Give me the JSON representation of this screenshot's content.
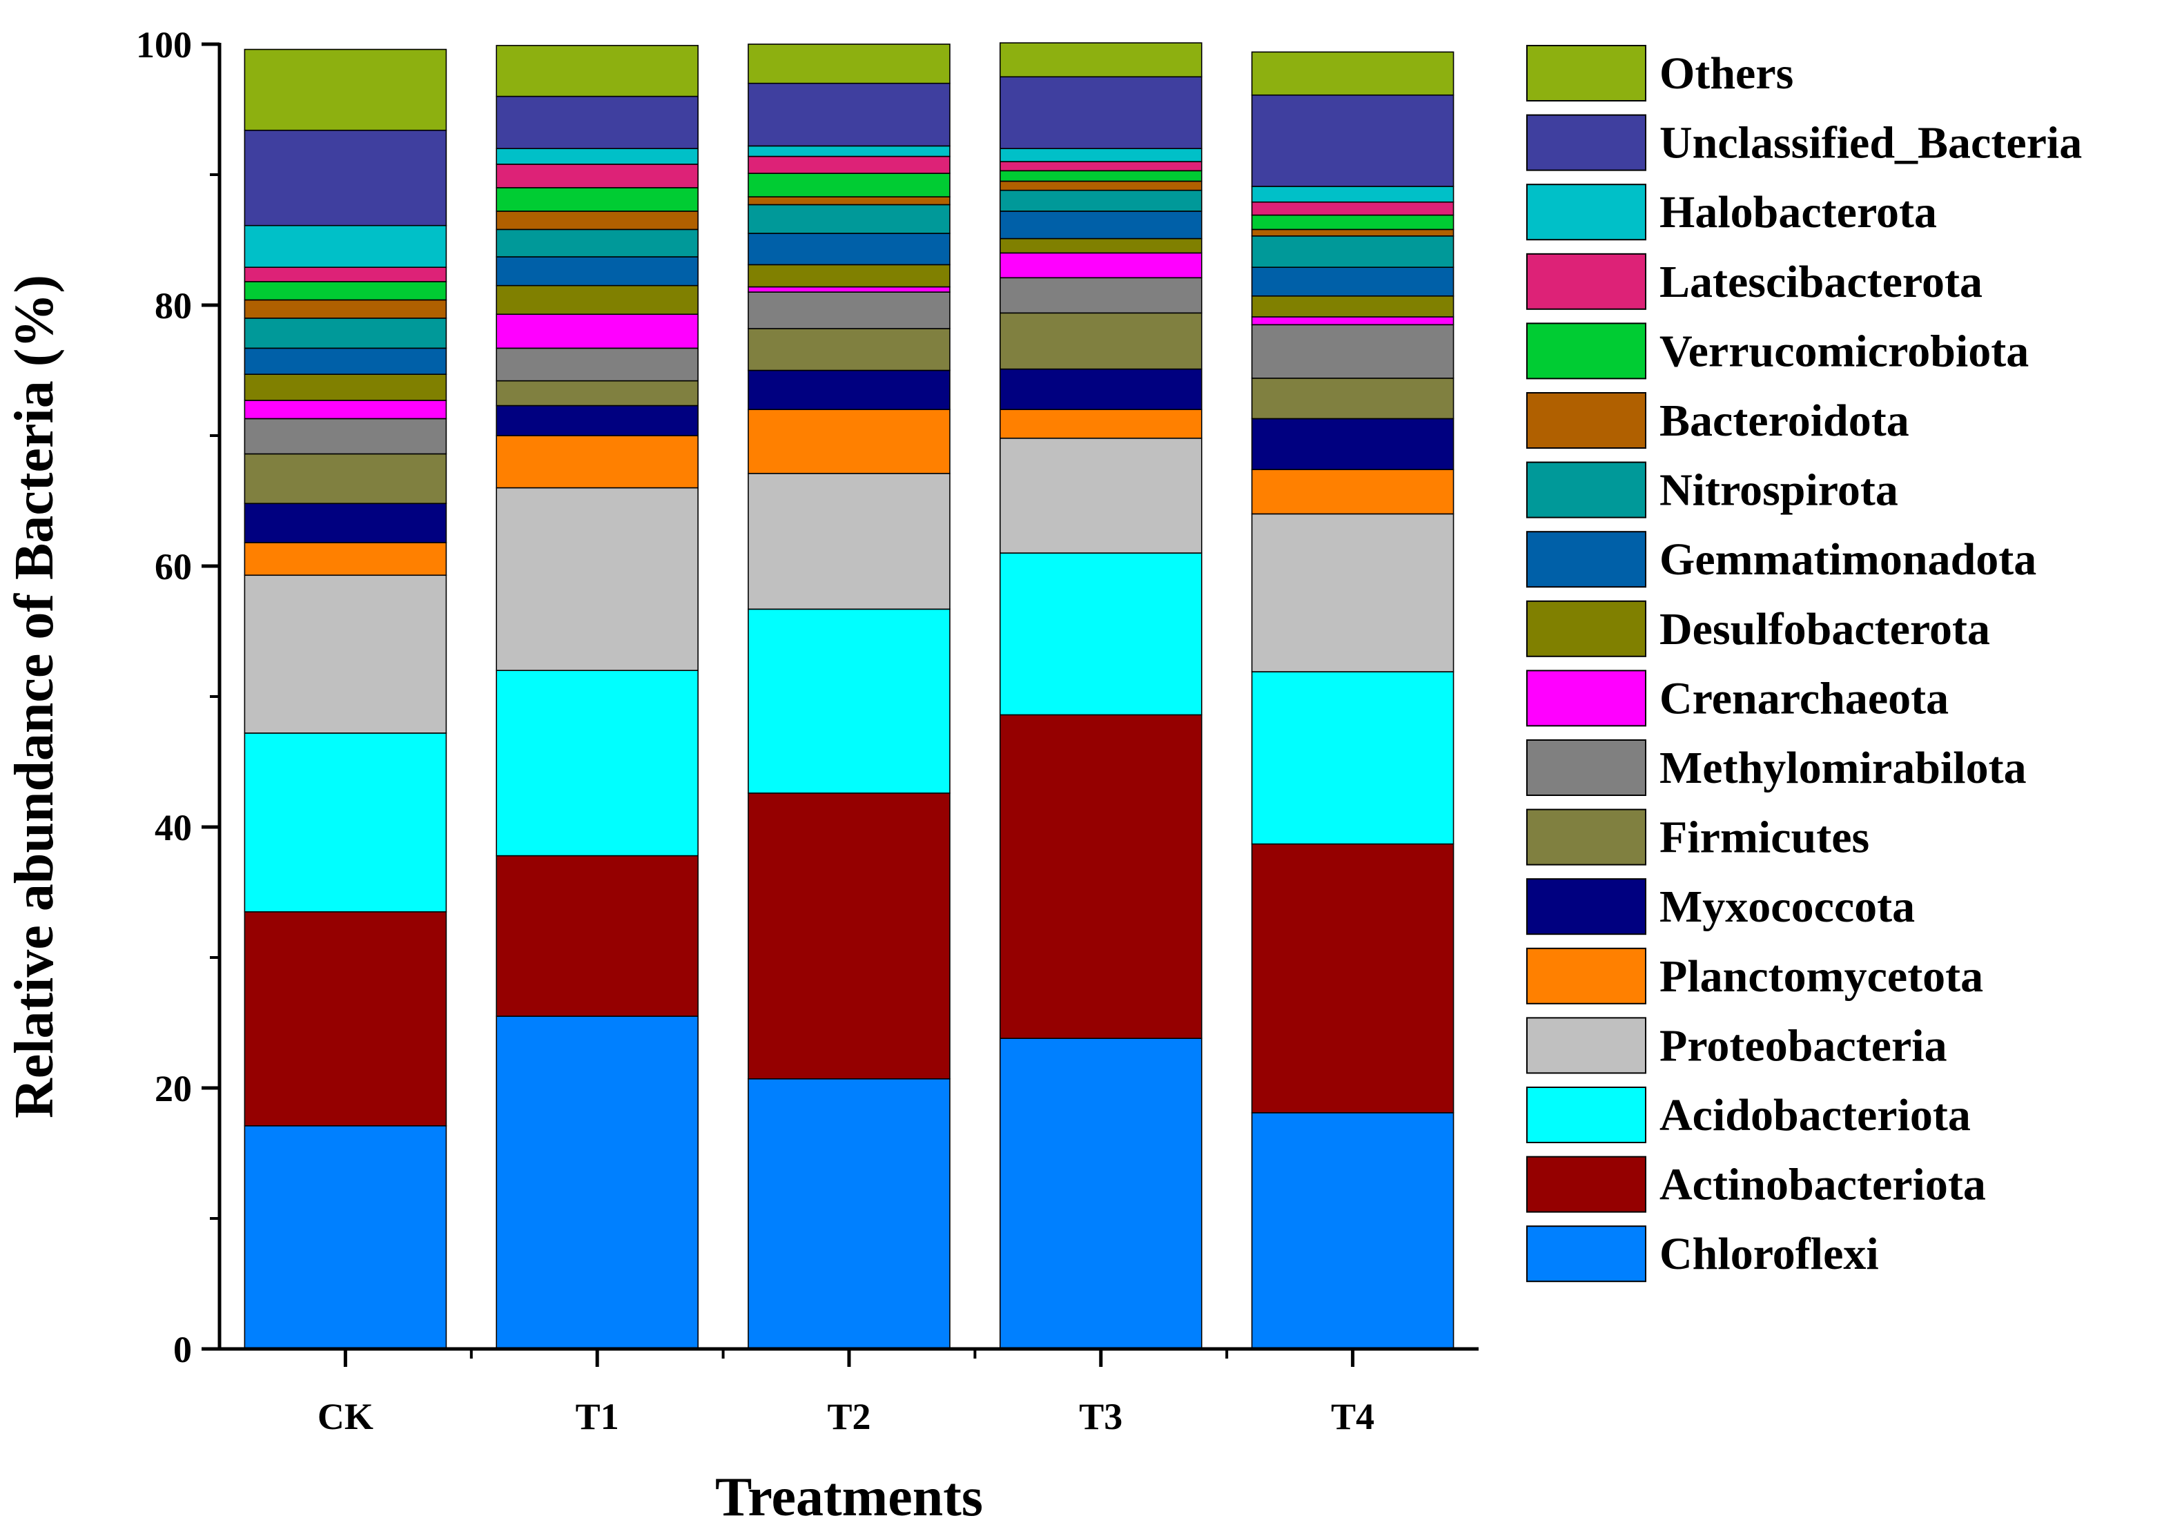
{
  "chart_data": {
    "type": "bar",
    "stacked": true,
    "title": "",
    "xlabel": "Treatments",
    "ylabel": "Relative abundance of Bacteria (%)",
    "ylim": [
      0,
      100
    ],
    "yticks": [
      0,
      20,
      40,
      60,
      80,
      100
    ],
    "ytick_labels": [
      "0",
      "20",
      "40",
      "60",
      "80",
      "100"
    ],
    "categories": [
      "CK",
      "T1",
      "T2",
      "T3",
      "T4"
    ],
    "legend_position": "right",
    "series": [
      {
        "name": "Chloroflexi",
        "color": "#0080FF",
        "values": [
          17.1,
          25.5,
          20.7,
          23.8,
          18.1
        ]
      },
      {
        "name": "Actinobacteriota",
        "color": "#950000",
        "values": [
          16.4,
          12.3,
          21.9,
          24.8,
          20.6
        ]
      },
      {
        "name": "Acidobacteriota",
        "color": "#00FFFF",
        "values": [
          13.7,
          14.2,
          14.1,
          12.4,
          13.2
        ]
      },
      {
        "name": "Proteobacteria",
        "color": "#C0C0C0",
        "values": [
          12.1,
          14.0,
          10.4,
          8.8,
          12.1
        ]
      },
      {
        "name": "Planctomycetota",
        "color": "#FF8000",
        "values": [
          2.5,
          4.0,
          4.9,
          2.2,
          3.4
        ]
      },
      {
        "name": "Myxococcota",
        "color": "#000080",
        "values": [
          3.0,
          2.3,
          3.0,
          3.1,
          3.9
        ]
      },
      {
        "name": "Firmicutes",
        "color": "#808040",
        "values": [
          3.8,
          1.9,
          3.2,
          4.3,
          3.1
        ]
      },
      {
        "name": "Methylomirabilota",
        "color": "#808080",
        "values": [
          2.7,
          2.5,
          2.8,
          2.7,
          4.1
        ]
      },
      {
        "name": "Crenarchaeota",
        "color": "#FF00FF",
        "values": [
          1.4,
          2.6,
          0.4,
          1.9,
          0.6
        ]
      },
      {
        "name": "Desulfobacterota",
        "color": "#808000",
        "values": [
          2.0,
          2.2,
          1.7,
          1.1,
          1.6
        ]
      },
      {
        "name": "Gemmatimonadota",
        "color": "#0060A8",
        "values": [
          2.0,
          2.2,
          2.4,
          2.1,
          2.2
        ]
      },
      {
        "name": "Nitrospirota",
        "color": "#009999",
        "values": [
          2.3,
          2.1,
          2.2,
          1.6,
          2.4
        ]
      },
      {
        "name": "Bacteroidota",
        "color": "#B06000",
        "values": [
          1.4,
          1.4,
          0.6,
          0.7,
          0.5
        ]
      },
      {
        "name": "Verrucomicrobiota",
        "color": "#00CC33",
        "values": [
          1.4,
          1.8,
          1.8,
          0.8,
          1.1
        ]
      },
      {
        "name": "Latescibacterota",
        "color": "#DD2277",
        "values": [
          1.1,
          1.8,
          1.3,
          0.7,
          1.0
        ]
      },
      {
        "name": "Halobacterota",
        "color": "#00C0C8",
        "values": [
          3.2,
          1.2,
          0.8,
          1.0,
          1.2
        ]
      },
      {
        "name": "Unclassified_Bacteria",
        "color": "#3F3F9F",
        "values": [
          7.3,
          4.0,
          4.8,
          5.5,
          7.0
        ]
      },
      {
        "name": "Others",
        "color": "#8DB010",
        "values": [
          6.2,
          3.9,
          3.0,
          2.6,
          3.3
        ]
      }
    ]
  }
}
